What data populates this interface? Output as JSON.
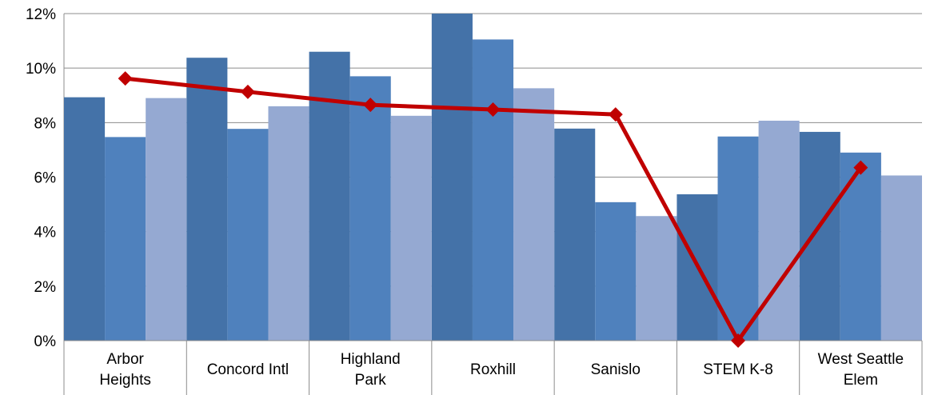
{
  "chart_data": {
    "type": "bar",
    "categories": [
      [
        "Arbor",
        "Heights"
      ],
      [
        "Concord Intl"
      ],
      [
        "Highland",
        "Park"
      ],
      [
        "Roxhill"
      ],
      [
        "Sanislo"
      ],
      [
        "STEM K-8"
      ],
      [
        "West Seattle",
        "Elem"
      ]
    ],
    "series": [
      {
        "type": "bar",
        "color": "#4472A8",
        "values": [
          8.93,
          10.38,
          10.6,
          12.0,
          7.78,
          5.37,
          7.66
        ]
      },
      {
        "type": "bar",
        "color": "#4F81BD",
        "values": [
          7.47,
          7.77,
          9.7,
          11.05,
          5.08,
          7.49,
          6.9
        ]
      },
      {
        "type": "bar",
        "color": "#95A9D2",
        "values": [
          8.9,
          8.6,
          8.25,
          9.26,
          4.57,
          8.07,
          6.06
        ]
      },
      {
        "type": "line",
        "color": "#C00000",
        "marker": "diamond",
        "values": [
          9.62,
          9.13,
          8.65,
          8.48,
          8.3,
          0.0,
          6.35
        ]
      }
    ],
    "ylim": [
      0,
      12
    ],
    "yticks": [
      0,
      2,
      4,
      6,
      8,
      10,
      12
    ],
    "ytick_format": "%",
    "grid": true
  }
}
